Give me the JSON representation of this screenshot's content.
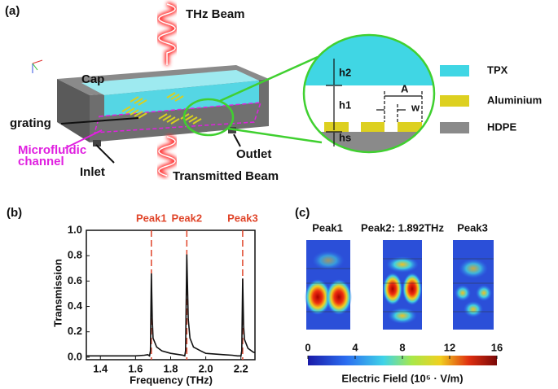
{
  "panel_a": {
    "label": "(a)",
    "beam_in": "THz Beam",
    "cap": "Cap",
    "grating": "grating",
    "channel": [
      "Microfluidic",
      "channel"
    ],
    "inlet": "Inlet",
    "outlet": "Outlet",
    "beam_out": "Transmitted Beam",
    "inset": {
      "h2": "h2",
      "h1": "h1",
      "hs": "hs",
      "period": "A",
      "width": "w"
    },
    "legend": [
      "TPX",
      "Aluminium",
      "HDPE"
    ]
  },
  "chart_data": {
    "type": "line",
    "label": "(b)",
    "xlabel": "Frequency (THz)",
    "ylabel": "Transmission",
    "color": "#111111",
    "annotation_color": "#e0452a",
    "x": [
      1.32,
      1.4,
      1.5,
      1.6,
      1.65,
      1.67,
      1.68,
      1.685,
      1.69,
      1.695,
      1.7,
      1.72,
      1.75,
      1.8,
      1.85,
      1.87,
      1.88,
      1.885,
      1.892,
      1.9,
      1.91,
      1.93,
      1.97,
      2.0,
      2.1,
      2.15,
      2.18,
      2.2,
      2.205,
      2.21,
      2.215,
      2.22,
      2.24,
      2.27,
      2.28
    ],
    "values": [
      0.01,
      0.01,
      0.01,
      0.01,
      0.015,
      0.02,
      0.01,
      0.05,
      0.66,
      0.3,
      0.15,
      0.08,
      0.05,
      0.03,
      0.02,
      0.015,
      0.01,
      0.05,
      0.81,
      0.3,
      0.15,
      0.08,
      0.05,
      0.03,
      0.02,
      0.015,
      0.01,
      0.01,
      0.05,
      0.62,
      0.25,
      0.14,
      0.07,
      0.04,
      0.035
    ],
    "xlim": [
      1.32,
      2.28
    ],
    "ylim": [
      -0.02,
      1.0
    ],
    "xticks": [
      1.4,
      1.6,
      1.8,
      {
        "value": 2,
        "label": "2.0"
      },
      2.2
    ],
    "yticks": [
      {
        "value": 0,
        "label": "0.0"
      },
      0.2,
      0.4,
      0.6,
      0.8,
      {
        "value": 1,
        "label": "1.0"
      }
    ],
    "annotations": [
      {
        "label": "Peak1",
        "x": 1.69
      },
      {
        "label": "Peak2",
        "x": 1.892
      },
      {
        "label": "Peak3",
        "x": 2.21
      }
    ]
  },
  "panel_c": {
    "label": "(c)",
    "titles": [
      "Peak1",
      "Peak2: 1.892THz",
      "Peak3"
    ],
    "colorbar": {
      "lim": [
        0,
        16
      ],
      "ticks": [
        0,
        4,
        8,
        12,
        16
      ],
      "label": "Electric Field (10⁵ · V/m)"
    }
  }
}
